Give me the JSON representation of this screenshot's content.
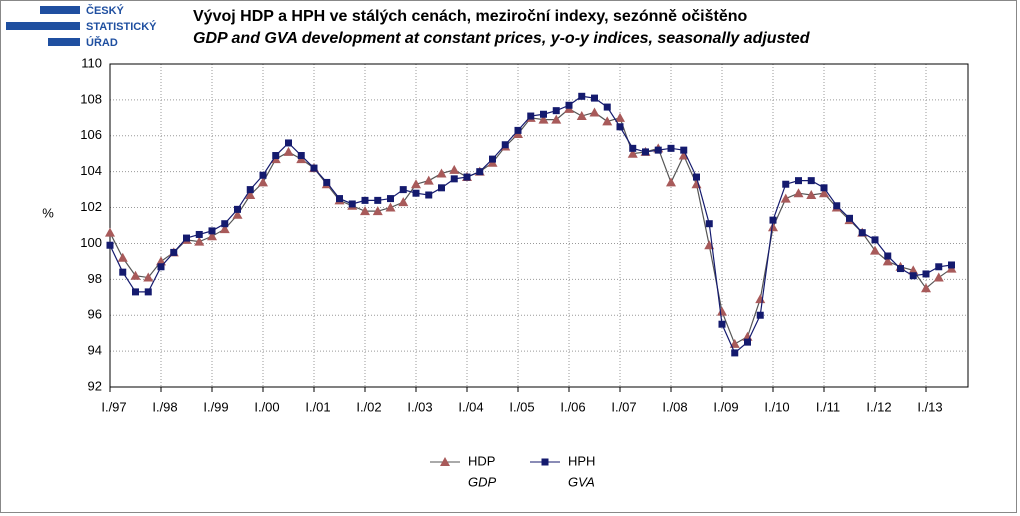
{
  "logo": [
    "ČESKÝ",
    "STATISTICKÝ",
    "ÚŘAD"
  ],
  "chart_data": {
    "type": "line",
    "title": "Vývoj HDP a HPH ve stálých cenách, meziroční indexy, sezónně očištěno",
    "subtitle": "GDP and GVA development at constant prices, y-o-y indices, seasonally adjusted",
    "y_label": "%",
    "categories": [
      "I./97",
      null,
      null,
      null,
      "I./98",
      null,
      null,
      null,
      "I./99",
      null,
      null,
      null,
      "I./00",
      null,
      null,
      null,
      "I./01",
      null,
      null,
      null,
      "I./02",
      null,
      null,
      null,
      "I./03",
      null,
      null,
      null,
      "I./04",
      null,
      null,
      null,
      "I./05",
      null,
      null,
      null,
      "I./06",
      null,
      null,
      null,
      "I./07",
      null,
      null,
      null,
      "I./08",
      null,
      null,
      null,
      "I./09",
      null,
      null,
      null,
      "I./10",
      null,
      null,
      null,
      "I./11",
      null,
      null,
      null,
      "I./12",
      null,
      null,
      null,
      "I./13",
      null,
      null
    ],
    "ylim": [
      92,
      110
    ],
    "yticks": [
      92,
      94,
      96,
      98,
      100,
      102,
      104,
      106,
      108,
      110
    ],
    "grid": true,
    "series": [
      {
        "name": "HDP",
        "legend_note": "GDP",
        "color": "#a85a5a",
        "line_color": "#555555",
        "marker": "triangle",
        "values": [
          100.6,
          99.2,
          98.2,
          98.1,
          99.0,
          99.5,
          100.2,
          100.1,
          100.4,
          100.8,
          101.6,
          102.7,
          103.4,
          104.7,
          105.1,
          104.7,
          104.2,
          103.3,
          102.4,
          102.1,
          101.8,
          101.8,
          102.0,
          102.3,
          103.3,
          103.5,
          103.9,
          104.1,
          103.7,
          104.0,
          104.5,
          105.4,
          106.1,
          107.0,
          106.9,
          106.9,
          107.5,
          107.1,
          107.3,
          106.8,
          107.0,
          105.0,
          105.1,
          105.3,
          103.4,
          104.9,
          103.3,
          99.9,
          96.2,
          94.4,
          94.8,
          96.9,
          100.9,
          102.5,
          102.8,
          102.7,
          102.8,
          102.0,
          101.3,
          100.6,
          99.6,
          99.0,
          98.7,
          98.5,
          97.5,
          98.1,
          98.6
        ]
      },
      {
        "name": "HPH",
        "legend_note": "GVA",
        "color": "#141a6e",
        "line_color": "#141a6e",
        "marker": "square",
        "values": [
          99.9,
          98.4,
          97.3,
          97.3,
          98.7,
          99.5,
          100.3,
          100.5,
          100.7,
          101.1,
          101.9,
          103.0,
          103.8,
          104.9,
          105.6,
          104.9,
          104.2,
          103.4,
          102.5,
          102.2,
          102.4,
          102.4,
          102.5,
          103.0,
          102.8,
          102.7,
          103.1,
          103.6,
          103.7,
          104.0,
          104.7,
          105.5,
          106.3,
          107.1,
          107.2,
          107.4,
          107.7,
          108.2,
          108.1,
          107.6,
          106.5,
          105.3,
          105.1,
          105.2,
          105.3,
          105.2,
          103.7,
          101.1,
          95.5,
          93.9,
          94.5,
          96.0,
          101.3,
          103.3,
          103.5,
          103.5,
          103.1,
          102.1,
          101.4,
          100.6,
          100.2,
          99.3,
          98.6,
          98.2,
          98.3,
          98.7,
          98.8
        ]
      }
    ]
  }
}
